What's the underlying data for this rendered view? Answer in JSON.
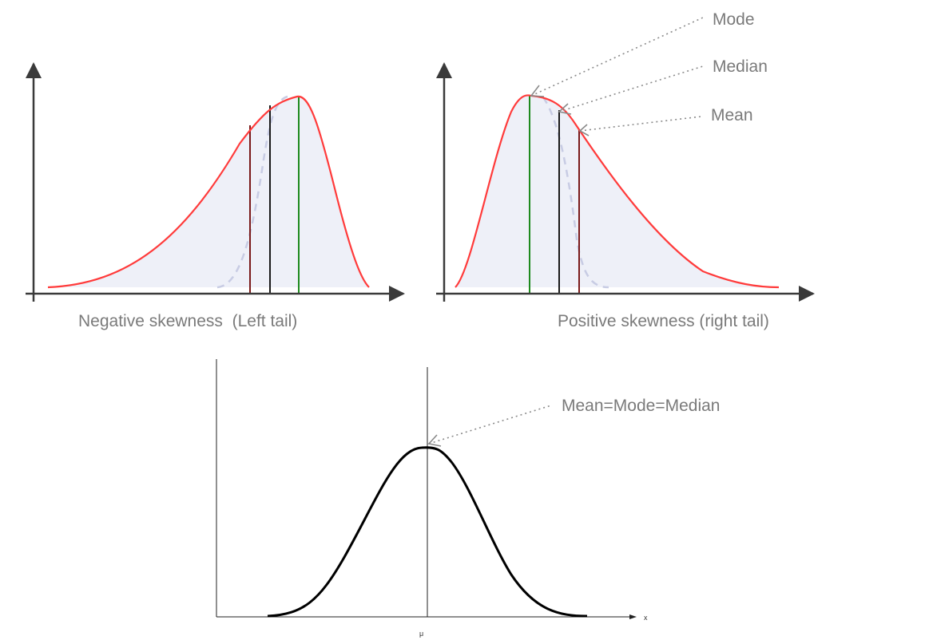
{
  "colors": {
    "skew_curve": "#ff3b3b",
    "normal_curve": "#000000",
    "axis": "#3a3a3a",
    "mode_line": "#1e8a1e",
    "median_line": "#1a1a1a",
    "mean_line": "#7a1a1a",
    "shade_fill": "#eef0f8",
    "reference_dash": "#c8cce4",
    "pointer": "#8a8a8a",
    "caption": "#7a7a7a"
  },
  "panels": {
    "negative": {
      "caption": "Negative skewness  (Left tail)"
    },
    "positive": {
      "caption": "Positive skewness (right tail)",
      "pointer_labels": {
        "mode": "Mode",
        "median": "Median",
        "mean": "Mean"
      }
    },
    "normal": {
      "pointer_label": "Mean=Mode=Median",
      "x_axis_label": "x",
      "center_tick_label": "μ"
    }
  }
}
